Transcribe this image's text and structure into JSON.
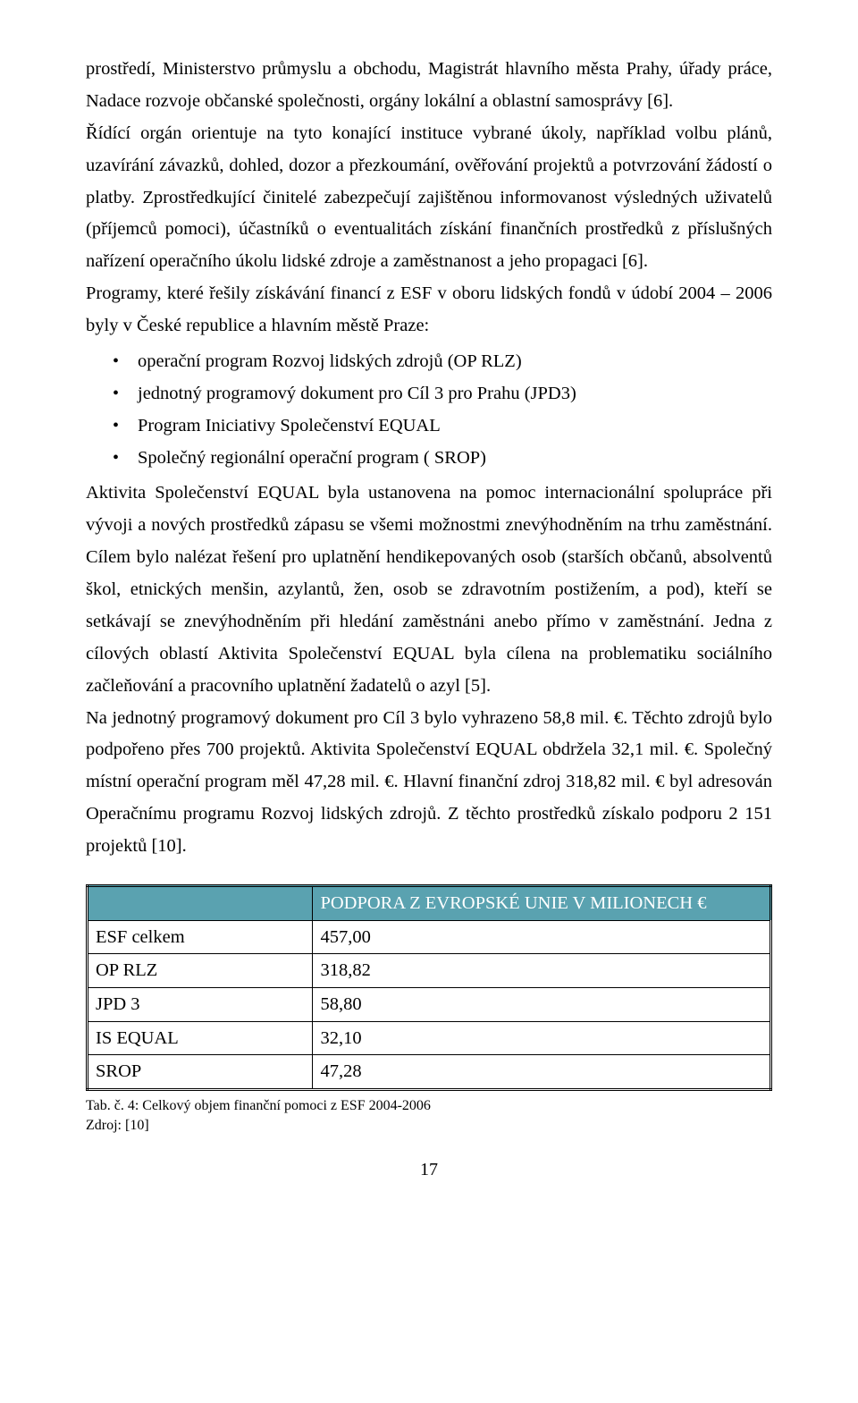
{
  "body": {
    "p1": "prostředí, Ministerstvo průmyslu a obchodu, Magistrát hlavního města Prahy, úřady práce, Nadace rozvoje občanské společnosti, orgány lokální a oblastní samosprávy [6].",
    "p2": "Řídící orgán orientuje na tyto konající instituce vybrané úkoly, například volbu plánů, uzavírání závazků, dohled, dozor a přezkoumání, ověřování projektů a potvrzování žádostí o platby. Zprostředkující činitelé zabezpečují zajištěnou informovanost výsledných uživatelů (příjemců pomoci), účastníků o eventualitách získání finančních prostředků z příslušných nařízení operačního úkolu lidské zdroje a zaměstnanost a jeho propagaci [6].",
    "p3": "Programy, které řešily získávání financí z ESF v oboru lidských fondů v údobí 2004 – 2006 byly v České republice a hlavním městě Praze:",
    "bullets": [
      "operační program Rozvoj lidských zdrojů (OP RLZ)",
      "jednotný programový dokument pro Cíl 3 pro Prahu (JPD3)",
      "Program Iniciativy Společenství EQUAL",
      "Společný regionální operační program ( SROP)"
    ],
    "p4": "Aktivita Společenství EQUAL byla ustanovena na pomoc internacionální spolupráce při vývoji a nových prostředků zápasu se všemi možnostmi znevýhodněním na trhu zaměstnání. Cílem bylo nalézat řešení pro uplatnění hendikepovaných osob (starších občanů, absolventů škol, etnických menšin, azylantů, žen, osob se zdravotním postižením, a pod), kteří se setkávají se znevýhodněním při hledání zaměstnáni anebo přímo v zaměstnání.  Jedna z cílových oblastí Aktivita Společenství EQUAL byla cílena na problematiku sociálního začleňování a pracovního uplatnění žadatelů o azyl [5].",
    "p5": "Na jednotný programový dokument pro Cíl 3 bylo vyhrazeno 58,8 mil. €. Těchto zdrojů bylo podpořeno přes 700 projektů. Aktivita Společenství EQUAL obdržela 32,1 mil. €. Společný místní operační program měl 47,28 mil. €. Hlavní finanční zdroj 318,82 mil. € byl adresován Operačnímu programu Rozvoj lidských zdrojů. Z těchto prostředků získalo podporu 2 151 projektů [10]."
  },
  "table": {
    "header_bg": "#5aa2b0",
    "header_text_color": "#ffffff",
    "header_label": "PODPORA Z EVROPSKÉ UNIE V MILIONECH €",
    "col1_width_pct": 33,
    "col2_width_pct": 67,
    "rows": [
      {
        "label": "ESF celkem",
        "value": "457,00"
      },
      {
        "label": "OP RLZ",
        "value": "318,82"
      },
      {
        "label": "JPD 3",
        "value": "58,80"
      },
      {
        "label": "IS EQUAL",
        "value": "32,10"
      },
      {
        "label": "SROP",
        "value": "47,28"
      }
    ]
  },
  "caption": {
    "line1": "Tab. č. 4: Celkový objem finanční pomoci z ESF 2004-2006",
    "line2": "Zdroj: [10]"
  },
  "page_number": "17"
}
